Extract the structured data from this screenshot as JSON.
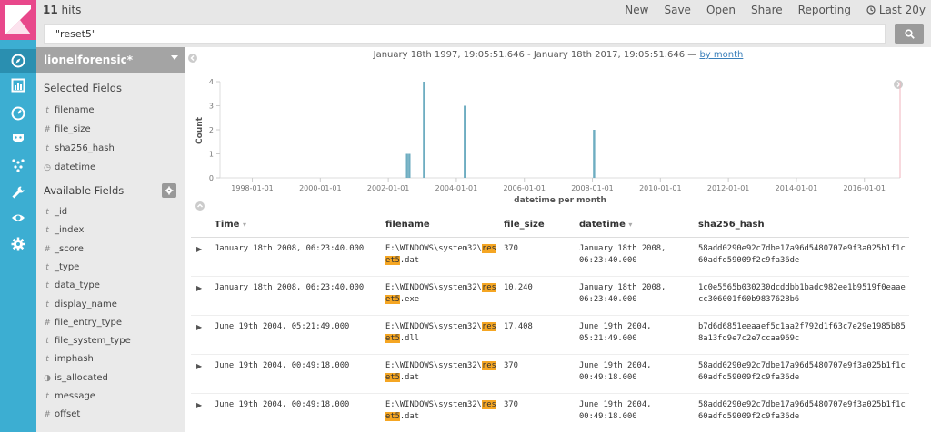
{
  "topbar": {
    "hits_count": "11",
    "hits_label": "hits",
    "menu": [
      "New",
      "Save",
      "Open",
      "Share",
      "Reporting"
    ],
    "time_label": "Last 20y"
  },
  "search": {
    "value": "\"reset5\""
  },
  "sidebar": {
    "index_pattern": "lionelforensic*",
    "selected_title": "Selected Fields",
    "selected_fields": [
      {
        "type": "t",
        "name": "filename"
      },
      {
        "type": "#",
        "name": "file_size"
      },
      {
        "type": "t",
        "name": "sha256_hash"
      },
      {
        "type": "clock",
        "name": "datetime"
      }
    ],
    "available_title": "Available Fields",
    "available_fields": [
      {
        "type": "t",
        "name": "_id"
      },
      {
        "type": "t",
        "name": "_index"
      },
      {
        "type": "#",
        "name": "_score"
      },
      {
        "type": "t",
        "name": "_type"
      },
      {
        "type": "t",
        "name": "data_type"
      },
      {
        "type": "t",
        "name": "display_name"
      },
      {
        "type": "#",
        "name": "file_entry_type"
      },
      {
        "type": "t",
        "name": "file_system_type"
      },
      {
        "type": "t",
        "name": "imphash"
      },
      {
        "type": "bool",
        "name": "is_allocated"
      },
      {
        "type": "t",
        "name": "message"
      },
      {
        "type": "#",
        "name": "offset"
      }
    ]
  },
  "time_range": {
    "text": "January 18th 1997, 19:05:51.646 - January 18th 2017, 19:05:51.646 —",
    "interval": "by month"
  },
  "chart_data": {
    "type": "bar",
    "ylabel": "Count",
    "xlabel": "datetime per month",
    "ylim": [
      0,
      4
    ],
    "yticks": [
      0,
      1,
      2,
      3,
      4
    ],
    "xticks": [
      "1998-01-01",
      "2000-01-01",
      "2002-01-01",
      "2004-01-01",
      "2006-01-01",
      "2008-01-01",
      "2010-01-01",
      "2012-01-01",
      "2014-01-01",
      "2016-01-01"
    ],
    "x_start": 1997.05,
    "x_end": 2017.05,
    "bars": [
      {
        "x": 2002.55,
        "y": 1
      },
      {
        "x": 2002.62,
        "y": 1
      },
      {
        "x": 2003.05,
        "y": 4
      },
      {
        "x": 2004.25,
        "y": 3
      },
      {
        "x": 2008.05,
        "y": 2
      }
    ],
    "color": "#6eadc1"
  },
  "table": {
    "headers": [
      "Time",
      "filename",
      "file_size",
      "datetime",
      "sha256_hash"
    ],
    "rows": [
      {
        "time": "January 18th 2008, 06:23:40.000",
        "fn_pre": "E:\\WINDOWS\\system32\\",
        "fn_hl": "reset5",
        "fn_post": ".dat",
        "size": "370",
        "datetime_1": "January 18th 2008,",
        "datetime_2": "06:23:40.000",
        "hash": "58add0290e92c7dbe17a96d5480707e9f3a025b1f1c60adfd59009f2c9fa36de"
      },
      {
        "time": "January 18th 2008, 06:23:40.000",
        "fn_pre": "E:\\WINDOWS\\system32\\",
        "fn_hl": "reset5",
        "fn_post": ".exe",
        "size": "10,240",
        "datetime_1": "January 18th 2008,",
        "datetime_2": "06:23:40.000",
        "hash": "1c0e5565b030230dcddbb1badc982ee1b9519f0eaaecc306001f60b9837628b6"
      },
      {
        "time": "June 19th 2004, 05:21:49.000",
        "fn_pre": "E:\\WINDOWS\\system32\\",
        "fn_hl": "reset5",
        "fn_post": ".dll",
        "size": "17,408",
        "datetime_1": "June 19th 2004,",
        "datetime_2": "05:21:49.000",
        "hash": "b7d6d6851eeaaef5c1aa2f792d1f63c7e29e1985b858a13fd9e7c2e7ccaa969c"
      },
      {
        "time": "June 19th 2004, 00:49:18.000",
        "fn_pre": "E:\\WINDOWS\\system32\\",
        "fn_hl": "reset5",
        "fn_post": ".dat",
        "size": "370",
        "datetime_1": "June 19th 2004,",
        "datetime_2": "00:49:18.000",
        "hash": "58add0290e92c7dbe17a96d5480707e9f3a025b1f1c60adfd59009f2c9fa36de"
      },
      {
        "time": "June 19th 2004, 00:49:18.000",
        "fn_pre": "E:\\WINDOWS\\system32\\",
        "fn_hl": "reset5",
        "fn_post": ".dat",
        "size": "370",
        "datetime_1": "June 19th 2004,",
        "datetime_2": "00:49:18.000",
        "hash": "58add0290e92c7dbe17a96d5480707e9f3a025b1f1c60adfd59009f2c9fa36de"
      }
    ]
  }
}
